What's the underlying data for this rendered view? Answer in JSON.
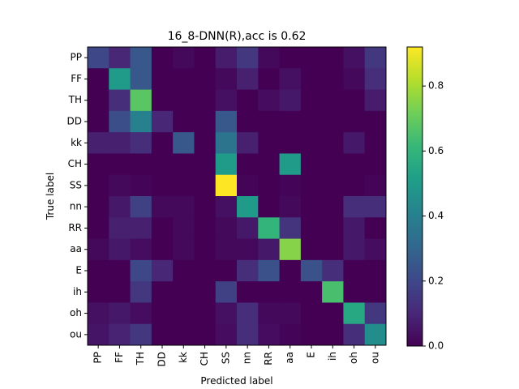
{
  "chart_data": {
    "type": "heatmap",
    "title": "16_8-DNN(R),acc is 0.62",
    "xlabel": "Predicted label",
    "ylabel": "True label",
    "labels": [
      "PP",
      "FF",
      "TH",
      "DD",
      "kk",
      "CH",
      "SS",
      "nn",
      "RR",
      "aa",
      "E",
      "ih",
      "oh",
      "ou"
    ],
    "colorbar": {
      "min": 0.0,
      "max": 0.92,
      "ticks": [
        0.0,
        0.2,
        0.4,
        0.6,
        0.8
      ],
      "tick_labels": [
        "0.0",
        "0.2",
        "0.4",
        "0.6",
        "0.8"
      ]
    },
    "matrix": [
      [
        0.2,
        0.1,
        0.25,
        0.0,
        0.02,
        0.0,
        0.07,
        0.15,
        0.02,
        0.0,
        0.0,
        0.0,
        0.04,
        0.15
      ],
      [
        0.0,
        0.5,
        0.25,
        0.0,
        0.0,
        0.0,
        0.02,
        0.08,
        0.0,
        0.04,
        0.0,
        0.0,
        0.02,
        0.12
      ],
      [
        0.0,
        0.12,
        0.68,
        0.0,
        0.0,
        0.0,
        0.04,
        0.0,
        0.03,
        0.06,
        0.0,
        0.0,
        0.0,
        0.07
      ],
      [
        0.0,
        0.22,
        0.4,
        0.1,
        0.0,
        0.0,
        0.25,
        0.0,
        0.0,
        0.0,
        0.0,
        0.0,
        0.0,
        0.0
      ],
      [
        0.08,
        0.08,
        0.12,
        0.0,
        0.25,
        0.0,
        0.35,
        0.08,
        0.0,
        0.0,
        0.0,
        0.0,
        0.06,
        0.0
      ],
      [
        0.0,
        0.0,
        0.0,
        0.0,
        0.0,
        0.0,
        0.5,
        0.0,
        0.0,
        0.5,
        0.0,
        0.0,
        0.0,
        0.0
      ],
      [
        0.0,
        0.02,
        0.01,
        0.0,
        0.0,
        0.0,
        0.92,
        0.01,
        0.0,
        0.01,
        0.0,
        0.0,
        0.0,
        0.01
      ],
      [
        0.0,
        0.06,
        0.18,
        0.02,
        0.02,
        0.0,
        0.04,
        0.5,
        0.0,
        0.02,
        0.0,
        0.0,
        0.12,
        0.12
      ],
      [
        0.0,
        0.08,
        0.08,
        0.0,
        0.02,
        0.0,
        0.02,
        0.06,
        0.6,
        0.14,
        0.0,
        0.0,
        0.06,
        0.0
      ],
      [
        0.02,
        0.06,
        0.03,
        0.0,
        0.02,
        0.0,
        0.02,
        0.02,
        0.06,
        0.75,
        0.0,
        0.0,
        0.06,
        0.03
      ],
      [
        0.0,
        0.0,
        0.2,
        0.1,
        0.0,
        0.0,
        0.0,
        0.12,
        0.23,
        0.0,
        0.23,
        0.12,
        0.0,
        0.0
      ],
      [
        0.0,
        0.0,
        0.15,
        0.0,
        0.0,
        0.0,
        0.18,
        0.0,
        0.0,
        0.0,
        0.0,
        0.65,
        0.0,
        0.0
      ],
      [
        0.04,
        0.06,
        0.03,
        0.0,
        0.0,
        0.0,
        0.04,
        0.12,
        0.02,
        0.02,
        0.0,
        0.0,
        0.55,
        0.15
      ],
      [
        0.05,
        0.09,
        0.15,
        0.0,
        0.0,
        0.0,
        0.03,
        0.12,
        0.03,
        0.01,
        0.0,
        0.0,
        0.12,
        0.45
      ]
    ]
  }
}
